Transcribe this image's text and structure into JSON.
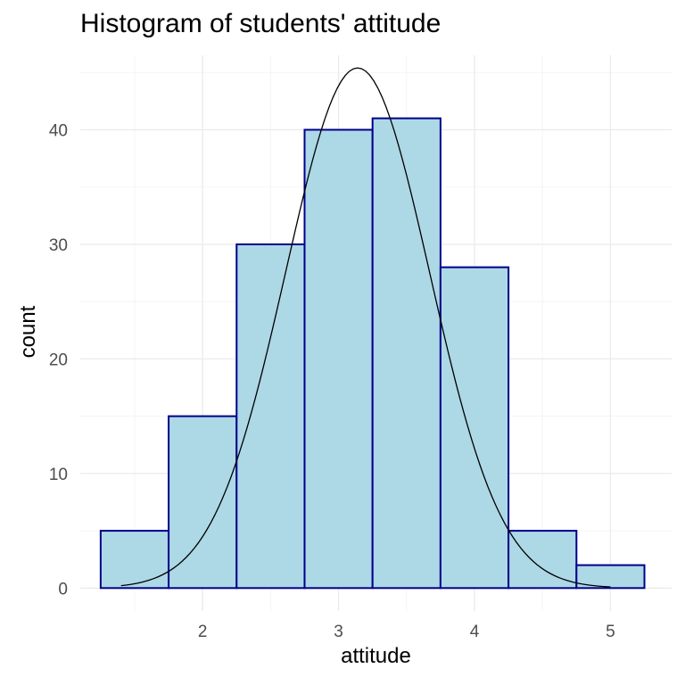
{
  "chart_data": {
    "type": "bar",
    "title": "Histogram of students' attitude",
    "xlabel": "attitude",
    "ylabel": "count",
    "xlim": [
      1.1,
      5.45
    ],
    "ylim": [
      -2,
      46.5
    ],
    "x_ticks": [
      2,
      3,
      4,
      5
    ],
    "y_ticks": [
      0,
      10,
      20,
      30,
      40
    ],
    "grid": true,
    "bins": [
      {
        "x0": 1.25,
        "x1": 1.75,
        "count": 5
      },
      {
        "x0": 1.75,
        "x1": 2.25,
        "count": 15
      },
      {
        "x0": 2.25,
        "x1": 2.75,
        "count": 30
      },
      {
        "x0": 2.75,
        "x1": 3.25,
        "count": 40
      },
      {
        "x0": 3.25,
        "x1": 3.75,
        "count": 41
      },
      {
        "x0": 3.75,
        "x1": 4.25,
        "count": 28
      },
      {
        "x0": 4.25,
        "x1": 4.75,
        "count": 5
      },
      {
        "x0": 4.75,
        "x1": 5.25,
        "count": 2
      }
    ],
    "bar_fill": "#add8e6",
    "bar_stroke": "#00008b",
    "density_curve": {
      "type": "normal",
      "mean": 3.14,
      "peak": 45.4,
      "sd": 0.53,
      "x_range": [
        1.4,
        5.0
      ],
      "color": "#000000"
    }
  }
}
